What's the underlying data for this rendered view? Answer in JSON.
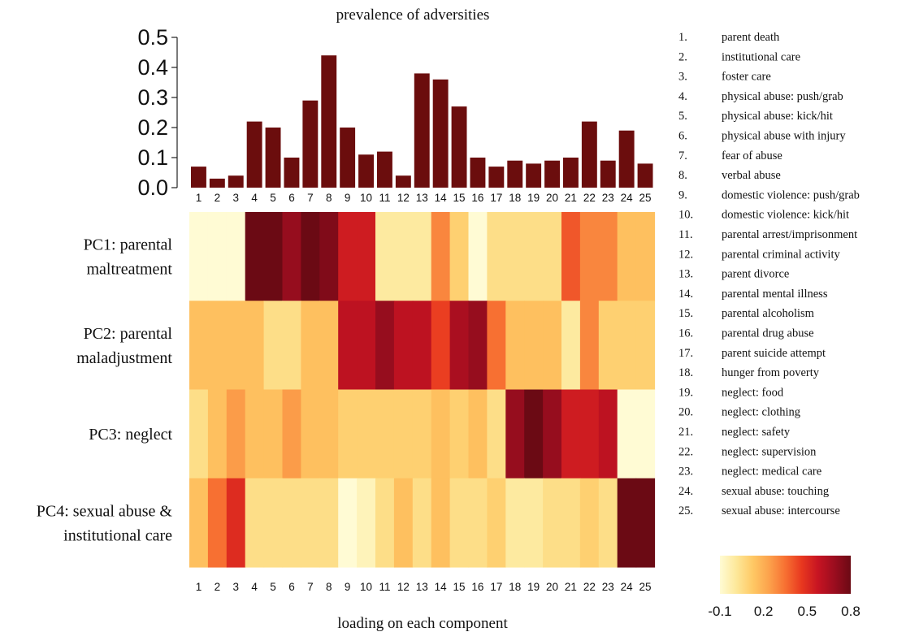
{
  "chart_data": [
    {
      "type": "bar",
      "title": "prevalence of adversities",
      "categories": [
        "1",
        "2",
        "3",
        "4",
        "5",
        "6",
        "7",
        "8",
        "9",
        "10",
        "11",
        "12",
        "13",
        "14",
        "15",
        "16",
        "17",
        "18",
        "19",
        "20",
        "21",
        "22",
        "23",
        "24",
        "25"
      ],
      "values": [
        0.07,
        0.03,
        0.04,
        0.22,
        0.2,
        0.1,
        0.29,
        0.44,
        0.2,
        0.11,
        0.12,
        0.04,
        0.38,
        0.36,
        0.27,
        0.1,
        0.07,
        0.09,
        0.08,
        0.09,
        0.1,
        0.22,
        0.09,
        0.19,
        0.08
      ],
      "ylim": [
        0,
        0.5
      ],
      "yticks": [
        "0.0",
        "0.1",
        "0.2",
        "0.3",
        "0.4",
        "0.5"
      ],
      "bar_color": "#6b0d0d"
    },
    {
      "type": "heatmap",
      "xlabel": "loading on each component",
      "columns": [
        "1",
        "2",
        "3",
        "4",
        "5",
        "6",
        "7",
        "8",
        "9",
        "10",
        "11",
        "12",
        "13",
        "14",
        "15",
        "16",
        "17",
        "18",
        "19",
        "20",
        "21",
        "22",
        "23",
        "24",
        "25"
      ],
      "rows": [
        {
          "label_lines": [
            "PC1: parental",
            "maltreatment"
          ],
          "values": [
            -0.1,
            -0.1,
            -0.1,
            0.8,
            0.8,
            0.7,
            0.8,
            0.75,
            0.55,
            0.55,
            0.0,
            0.0,
            0.0,
            0.3,
            0.1,
            -0.1,
            0.05,
            0.05,
            0.05,
            0.05,
            0.4,
            0.3,
            0.3,
            0.15,
            0.15
          ]
        },
        {
          "label_lines": [
            "PC2: parental",
            "maladjustment"
          ],
          "values": [
            0.15,
            0.15,
            0.15,
            0.15,
            0.05,
            0.05,
            0.15,
            0.15,
            0.6,
            0.6,
            0.7,
            0.6,
            0.6,
            0.45,
            0.65,
            0.7,
            0.35,
            0.15,
            0.15,
            0.15,
            0.0,
            0.3,
            0.1,
            0.1,
            0.1
          ]
        },
        {
          "label_lines": [
            "PC3: neglect"
          ],
          "values": [
            0.05,
            0.15,
            0.25,
            0.15,
            0.15,
            0.25,
            0.15,
            0.15,
            0.1,
            0.1,
            0.1,
            0.1,
            0.1,
            0.15,
            0.1,
            0.15,
            0.05,
            0.7,
            0.8,
            0.7,
            0.55,
            0.55,
            0.6,
            -0.1,
            -0.1
          ]
        },
        {
          "label_lines": [
            "PC4: sexual abuse &",
            "institutional care"
          ],
          "values": [
            0.15,
            0.35,
            0.5,
            0.05,
            0.05,
            0.05,
            0.05,
            0.05,
            -0.1,
            -0.05,
            0.05,
            0.15,
            0.05,
            0.15,
            0.05,
            0.05,
            0.1,
            0.0,
            0.0,
            0.05,
            0.05,
            0.1,
            0.05,
            0.8,
            0.8
          ]
        }
      ],
      "colorbar": {
        "ticks": [
          "-0.1",
          "0.2",
          "0.5",
          "0.8"
        ],
        "range": [
          -0.1,
          0.8
        ],
        "colors": [
          "#fffbd4",
          "#fde89a",
          "#fec965",
          "#fca24c",
          "#f77032",
          "#e8381f",
          "#c71422",
          "#9b0d1f",
          "#6b0a14"
        ]
      }
    }
  ],
  "legend_items": [
    {
      "num": "1.",
      "label": "parent death"
    },
    {
      "num": "2.",
      "label": "institutional care"
    },
    {
      "num": "3.",
      "label": "foster care"
    },
    {
      "num": "4.",
      "label": "physical abuse: push/grab"
    },
    {
      "num": "5.",
      "label": "physical abuse: kick/hit"
    },
    {
      "num": "6.",
      "label": "physical abuse with injury"
    },
    {
      "num": "7.",
      "label": "fear of abuse"
    },
    {
      "num": "8.",
      "label": "verbal abuse"
    },
    {
      "num": "9.",
      "label": "domestic violence: push/grab"
    },
    {
      "num": "10.",
      "label": "domestic violence: kick/hit"
    },
    {
      "num": "11.",
      "label": "parental arrest/imprisonment"
    },
    {
      "num": "12.",
      "label": "parental criminal activity"
    },
    {
      "num": "13.",
      "label": "parent divorce"
    },
    {
      "num": "14.",
      "label": "parental mental illness"
    },
    {
      "num": "15.",
      "label": "parental alcoholism"
    },
    {
      "num": "16.",
      "label": "parental drug abuse"
    },
    {
      "num": "17.",
      "label": "parent suicide attempt"
    },
    {
      "num": "18.",
      "label": "hunger from poverty"
    },
    {
      "num": "19.",
      "label": "neglect: food"
    },
    {
      "num": "20.",
      "label": "neglect: clothing"
    },
    {
      "num": "21.",
      "label": "neglect: safety"
    },
    {
      "num": "22.",
      "label": "neglect: supervision"
    },
    {
      "num": "23.",
      "label": "neglect: medical care"
    },
    {
      "num": "24.",
      "label": "sexual abuse: touching"
    },
    {
      "num": "25.",
      "label": "sexual abuse: intercourse"
    }
  ]
}
